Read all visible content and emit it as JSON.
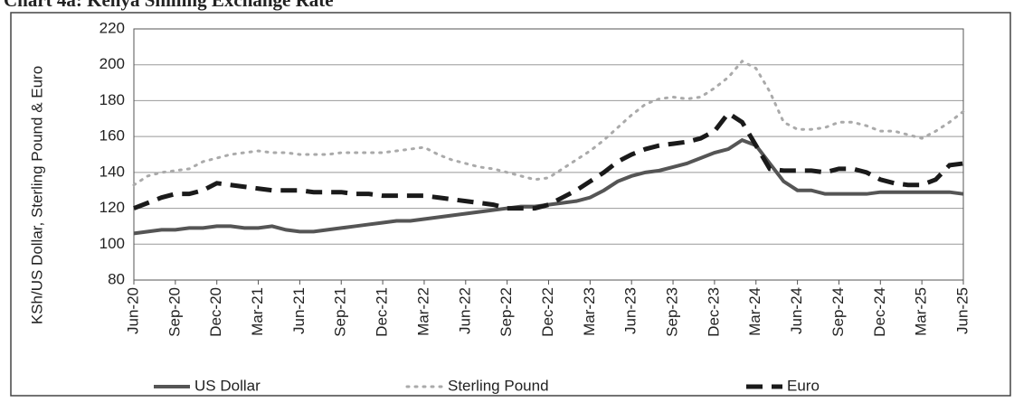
{
  "chart_data": {
    "type": "line",
    "title": "Chart 4a: Kenya Shilling Exchange Rate",
    "y_label": "KSh/US Dollar, Sterling Pound & Euro",
    "categories": [
      "Jun-20",
      null,
      null,
      "Sep-20",
      null,
      null,
      "Dec-20",
      null,
      null,
      "Mar-21",
      null,
      null,
      "Jun-21",
      null,
      null,
      "Sep-21",
      null,
      null,
      "Dec-21",
      null,
      null,
      "Mar-22",
      null,
      null,
      "Jun-22",
      null,
      null,
      "Sep-22",
      null,
      null,
      "Dec-22",
      null,
      null,
      "Mar-23",
      null,
      null,
      "Jun-23",
      null,
      null,
      "Sep-23",
      null,
      null,
      "Dec-23",
      null,
      null,
      "Mar-24",
      null,
      null,
      "Jun-24",
      null,
      null,
      "Sep-24",
      null,
      null,
      "Dec-24",
      null,
      null,
      "Mar-25",
      null,
      null,
      "Jun-25"
    ],
    "series": [
      {
        "name": "US Dollar",
        "color": "#555555",
        "line_style": "solid",
        "values": [
          106,
          107,
          108,
          108,
          109,
          109,
          110,
          110,
          109,
          109,
          110,
          108,
          107,
          107,
          108,
          109,
          110,
          111,
          112,
          113,
          113,
          114,
          115,
          116,
          117,
          118,
          119,
          120,
          121,
          121,
          122,
          123,
          124,
          126,
          130,
          135,
          138,
          140,
          141,
          143,
          145,
          148,
          151,
          153,
          158,
          155,
          145,
          135,
          130,
          130,
          128,
          128,
          128,
          128,
          129,
          129,
          129,
          129,
          129,
          129,
          128
        ]
      },
      {
        "name": "Sterling Pound",
        "color": "#aaaaaa",
        "line_style": "dotted",
        "values": [
          133,
          138,
          140,
          141,
          142,
          146,
          148,
          150,
          151,
          152,
          151,
          151,
          150,
          150,
          150,
          151,
          151,
          151,
          151,
          152,
          153,
          154,
          150,
          147,
          145,
          143,
          142,
          140,
          138,
          136,
          137,
          142,
          147,
          152,
          158,
          165,
          172,
          178,
          181,
          182,
          181,
          182,
          187,
          193,
          202,
          198,
          185,
          168,
          164,
          164,
          165,
          168,
          168,
          166,
          163,
          163,
          161,
          159,
          163,
          168,
          174
        ]
      },
      {
        "name": "Euro",
        "color": "#1a1a1a",
        "line_style": "dashed",
        "values": [
          120,
          123,
          126,
          128,
          128,
          130,
          134,
          133,
          132,
          131,
          130,
          130,
          130,
          129,
          129,
          129,
          128,
          128,
          127,
          127,
          127,
          127,
          126,
          125,
          124,
          123,
          122,
          120,
          120,
          120,
          122,
          126,
          130,
          135,
          140,
          146,
          150,
          153,
          155,
          156,
          157,
          159,
          163,
          173,
          168,
          155,
          142,
          141,
          141,
          141,
          140,
          142,
          142,
          140,
          136,
          134,
          133,
          133,
          136,
          144,
          145
        ]
      }
    ],
    "ylim": [
      80,
      220
    ],
    "yticks": [
      80,
      100,
      120,
      140,
      160,
      180,
      200,
      220
    ],
    "grid": true,
    "legend": "bottom"
  }
}
